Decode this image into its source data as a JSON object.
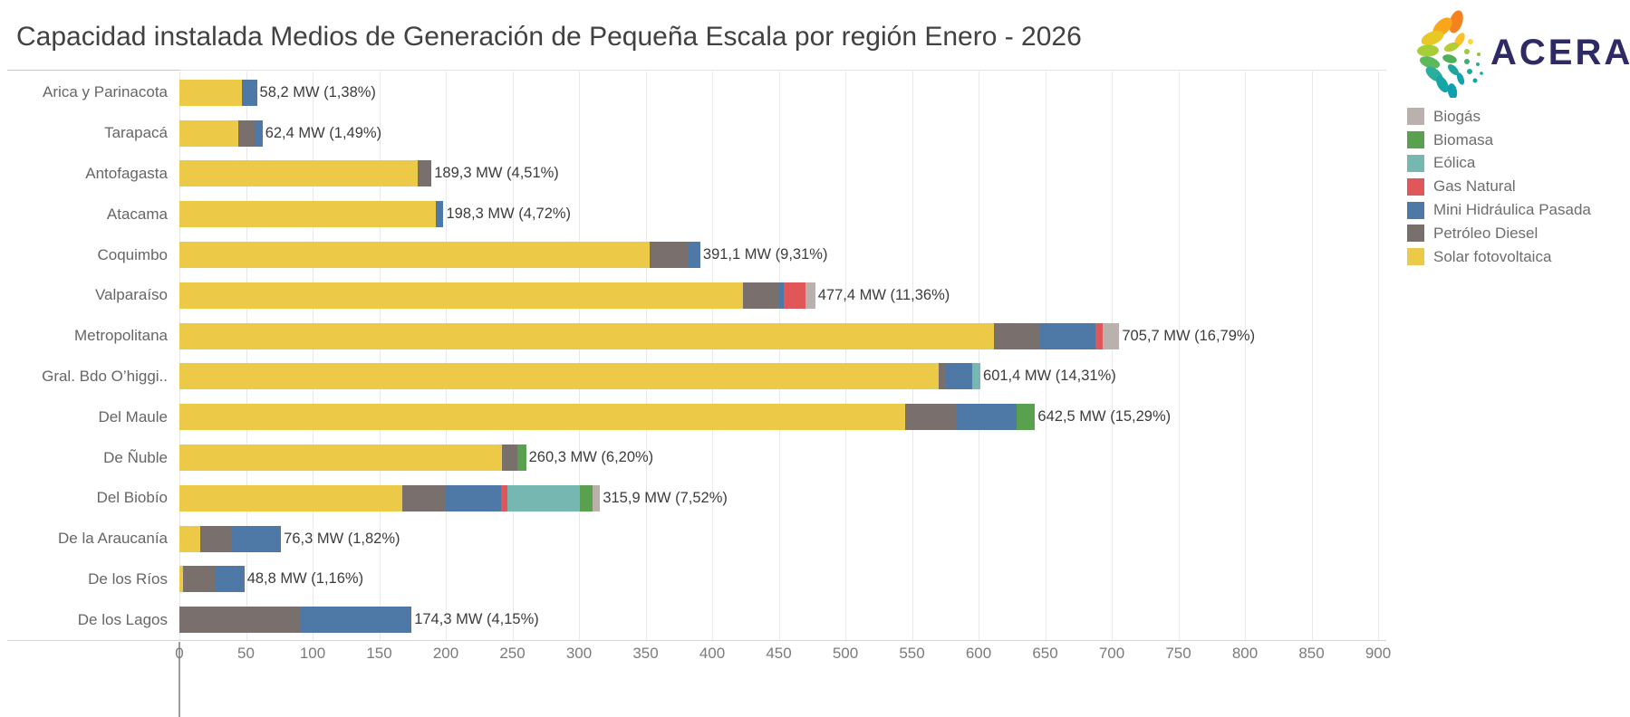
{
  "header": {
    "title": "Capacidad instalada Medios de Generación de Pequeña Escala por región Enero - 2026",
    "brand_name": "ACERA"
  },
  "chart_data": {
    "type": "bar",
    "orientation": "horizontal",
    "stacked": true,
    "title": "Capacidad instalada Medios de Generación de Pequeña Escala por región Enero - 2026",
    "xlabel": "",
    "ylabel": "",
    "xlim": [
      0,
      900
    ],
    "x_ticks": [
      0,
      50,
      100,
      150,
      200,
      250,
      300,
      350,
      400,
      450,
      500,
      550,
      600,
      650,
      700,
      750,
      800,
      850,
      900
    ],
    "grid": true,
    "legend_position": "right",
    "unit": "MW",
    "stack_order": [
      "Solar fotovoltaica",
      "Petróleo Diesel",
      "Mini Hidráulica Pasada",
      "Gas Natural",
      "Eólica",
      "Biomasa",
      "Biogás"
    ],
    "colors": {
      "Biogás": "#BAB0AC",
      "Biomasa": "#59A14F",
      "Eólica": "#76B7B2",
      "Gas Natural": "#E15759",
      "Mini Hidráulica Pasada": "#4E79A7",
      "Petróleo Diesel": "#79706E",
      "Solar fotovoltaica": "#EDC948"
    },
    "legend": [
      {
        "label": "Biogás",
        "color": "#BAB0AC"
      },
      {
        "label": "Biomasa",
        "color": "#59A14F"
      },
      {
        "label": "Eólica",
        "color": "#76B7B2"
      },
      {
        "label": "Gas Natural",
        "color": "#E15759"
      },
      {
        "label": "Mini Hidráulica Pasada",
        "color": "#4E79A7"
      },
      {
        "label": "Petróleo Diesel",
        "color": "#79706E"
      },
      {
        "label": "Solar fotovoltaica",
        "color": "#EDC948"
      }
    ],
    "regions": [
      {
        "name": "Arica y Parinacota",
        "total_mw": 58.2,
        "label": "58,2 MW (1,38%)",
        "segments": [
          {
            "type": "Solar fotovoltaica",
            "mw": 47.0
          },
          {
            "type": "Mini Hidráulica Pasada",
            "mw": 11.2
          }
        ]
      },
      {
        "name": "Tarapacá",
        "total_mw": 62.4,
        "label": "62,4 MW (1,49%)",
        "segments": [
          {
            "type": "Solar fotovoltaica",
            "mw": 44.0
          },
          {
            "type": "Petróleo Diesel",
            "mw": 12.7
          },
          {
            "type": "Mini Hidráulica Pasada",
            "mw": 5.7
          }
        ]
      },
      {
        "name": "Antofagasta",
        "total_mw": 189.3,
        "label": "189,3 MW (4,51%)",
        "segments": [
          {
            "type": "Solar fotovoltaica",
            "mw": 178.9
          },
          {
            "type": "Petróleo Diesel",
            "mw": 10.4
          }
        ]
      },
      {
        "name": "Atacama",
        "total_mw": 198.3,
        "label": "198,3 MW (4,72%)",
        "segments": [
          {
            "type": "Solar fotovoltaica",
            "mw": 192.8
          },
          {
            "type": "Mini Hidráulica Pasada",
            "mw": 5.5
          }
        ]
      },
      {
        "name": "Coquimbo",
        "total_mw": 391.1,
        "label": "391,1 MW (9,31%)",
        "segments": [
          {
            "type": "Solar fotovoltaica",
            "mw": 352.8
          },
          {
            "type": "Petróleo Diesel",
            "mw": 28.8
          },
          {
            "type": "Mini Hidráulica Pasada",
            "mw": 9.5
          }
        ]
      },
      {
        "name": "Valparaíso",
        "total_mw": 477.4,
        "label": "477,4 MW (11,36%)",
        "segments": [
          {
            "type": "Solar fotovoltaica",
            "mw": 423.0
          },
          {
            "type": "Petróleo Diesel",
            "mw": 26.4
          },
          {
            "type": "Mini Hidráulica Pasada",
            "mw": 4.1
          },
          {
            "type": "Gas Natural",
            "mw": 16.3
          },
          {
            "type": "Biogás",
            "mw": 7.6
          }
        ]
      },
      {
        "name": "Metropolitana",
        "total_mw": 705.7,
        "label": "705,7 MW (16,79%)",
        "segments": [
          {
            "type": "Solar fotovoltaica",
            "mw": 611.5
          },
          {
            "type": "Petróleo Diesel",
            "mw": 35.0
          },
          {
            "type": "Mini Hidráulica Pasada",
            "mw": 41.0
          },
          {
            "type": "Gas Natural",
            "mw": 5.7
          },
          {
            "type": "Biogás",
            "mw": 12.5
          }
        ]
      },
      {
        "name": "Gral. Bdo O’higgi..",
        "total_mw": 601.4,
        "label": "601,4 MW (14,31%)",
        "segments": [
          {
            "type": "Solar fotovoltaica",
            "mw": 570.4
          },
          {
            "type": "Petróleo Diesel",
            "mw": 5.0
          },
          {
            "type": "Mini Hidráulica Pasada",
            "mw": 19.7
          },
          {
            "type": "Eólica",
            "mw": 6.3
          }
        ]
      },
      {
        "name": "Del Maule",
        "total_mw": 642.5,
        "label": "642,5 MW (15,29%)",
        "segments": [
          {
            "type": "Solar fotovoltaica",
            "mw": 544.6
          },
          {
            "type": "Petróleo Diesel",
            "mw": 39.1
          },
          {
            "type": "Mini Hidráulica Pasada",
            "mw": 44.6
          },
          {
            "type": "Biomasa",
            "mw": 14.2
          }
        ]
      },
      {
        "name": "De Ñuble",
        "total_mw": 260.3,
        "label": "260,3 MW (6,20%)",
        "segments": [
          {
            "type": "Solar fotovoltaica",
            "mw": 242.5
          },
          {
            "type": "Petróleo Diesel",
            "mw": 11.3
          },
          {
            "type": "Biomasa",
            "mw": 6.5
          }
        ]
      },
      {
        "name": "Del Biobío",
        "total_mw": 315.9,
        "label": "315,9 MW (7,52%)",
        "segments": [
          {
            "type": "Solar fotovoltaica",
            "mw": 167.5
          },
          {
            "type": "Petróleo Diesel",
            "mw": 32.2
          },
          {
            "type": "Mini Hidráulica Pasada",
            "mw": 41.7
          },
          {
            "type": "Gas Natural",
            "mw": 4.6
          },
          {
            "type": "Eólica",
            "mw": 54.5
          },
          {
            "type": "Biomasa",
            "mw": 9.7
          },
          {
            "type": "Biogás",
            "mw": 5.7
          }
        ]
      },
      {
        "name": "De la Araucanía",
        "total_mw": 76.3,
        "label": "76,3 MW (1,82%)",
        "segments": [
          {
            "type": "Solar fotovoltaica",
            "mw": 15.5
          },
          {
            "type": "Petróleo Diesel",
            "mw": 24.0
          },
          {
            "type": "Mini Hidráulica Pasada",
            "mw": 36.8
          }
        ]
      },
      {
        "name": "De los Ríos",
        "total_mw": 48.8,
        "label": "48,8 MW (1,16%)",
        "segments": [
          {
            "type": "Solar fotovoltaica",
            "mw": 3.0
          },
          {
            "type": "Petróleo Diesel",
            "mw": 24.0
          },
          {
            "type": "Mini Hidráulica Pasada",
            "mw": 21.8
          }
        ]
      },
      {
        "name": "De los Lagos",
        "total_mw": 174.3,
        "label": "174,3 MW (4,15%)",
        "segments": [
          {
            "type": "Petróleo Diesel",
            "mw": 91.0
          },
          {
            "type": "Mini Hidráulica Pasada",
            "mw": 83.3
          }
        ]
      }
    ]
  }
}
